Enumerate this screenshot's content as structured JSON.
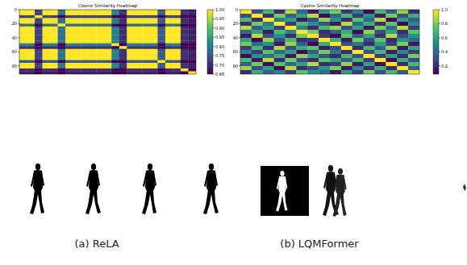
{
  "chart_data": [
    {
      "type": "heatmap",
      "title": "Cosine Similarity Heatmap",
      "caption": "(a) ReLA",
      "xlim": [
        0,
        92
      ],
      "ylim": [
        0,
        92
      ],
      "yticks": [
        0,
        20,
        40,
        60,
        80
      ],
      "tick_labels": "y",
      "cells": [
        [
          1,
          1,
          0.72,
          1,
          1,
          0.78,
          1,
          1,
          1,
          1,
          1,
          1,
          0.8,
          0.7,
          1,
          1,
          1,
          1,
          0.75,
          1,
          1,
          0.7,
          0.68
        ],
        [
          1,
          1,
          0.72,
          1,
          1,
          0.78,
          1,
          1,
          1,
          1,
          1,
          1,
          0.8,
          0.7,
          1,
          1,
          1,
          1,
          0.75,
          1,
          1,
          0.7,
          0.68
        ],
        [
          0.72,
          0.72,
          1,
          0.72,
          0.72,
          0.65,
          0.72,
          0.72,
          0.72,
          0.72,
          0.72,
          0.72,
          0.65,
          0.65,
          0.72,
          0.72,
          0.72,
          0.72,
          0.65,
          0.72,
          0.72,
          0.65,
          0.65
        ],
        [
          1,
          1,
          0.72,
          1,
          1,
          0.78,
          1,
          1,
          1,
          1,
          1,
          1,
          0.8,
          0.7,
          1,
          1,
          1,
          1,
          0.75,
          1,
          1,
          0.7,
          0.68
        ],
        [
          1,
          1,
          0.72,
          1,
          1,
          0.78,
          1,
          1,
          1,
          1,
          1,
          1,
          0.8,
          0.7,
          1,
          1,
          1,
          1,
          0.75,
          1,
          1,
          0.7,
          0.68
        ],
        [
          0.78,
          0.78,
          0.65,
          0.78,
          0.78,
          1,
          0.78,
          0.78,
          0.78,
          0.78,
          0.78,
          0.78,
          0.65,
          0.65,
          0.78,
          0.78,
          0.78,
          0.78,
          0.65,
          0.78,
          0.78,
          0.65,
          0.65
        ],
        [
          1,
          1,
          0.72,
          1,
          1,
          0.78,
          1,
          1,
          1,
          1,
          1,
          1,
          0.8,
          0.7,
          1,
          1,
          1,
          1,
          0.75,
          1,
          1,
          0.7,
          0.68
        ],
        [
          1,
          1,
          0.72,
          1,
          1,
          0.78,
          1,
          1,
          1,
          1,
          1,
          1,
          0.8,
          0.7,
          1,
          1,
          1,
          1,
          0.75,
          1,
          1,
          0.7,
          0.68
        ],
        [
          1,
          1,
          0.72,
          1,
          1,
          0.78,
          1,
          1,
          1,
          1,
          1,
          1,
          0.8,
          0.7,
          1,
          1,
          1,
          1,
          0.75,
          1,
          1,
          0.7,
          0.68
        ],
        [
          1,
          1,
          0.72,
          1,
          1,
          0.78,
          1,
          1,
          1,
          1,
          1,
          1,
          0.8,
          0.7,
          1,
          1,
          1,
          1,
          0.75,
          1,
          1,
          0.7,
          0.68
        ],
        [
          1,
          1,
          0.72,
          1,
          1,
          0.78,
          1,
          1,
          1,
          1,
          1,
          1,
          0.8,
          0.7,
          1,
          1,
          1,
          1,
          0.75,
          1,
          1,
          0.7,
          0.68
        ],
        [
          1,
          1,
          0.72,
          1,
          1,
          0.78,
          1,
          1,
          1,
          1,
          1,
          1,
          0.8,
          0.7,
          1,
          1,
          1,
          1,
          0.75,
          1,
          1,
          0.7,
          0.68
        ],
        [
          0.8,
          0.8,
          0.65,
          0.8,
          0.8,
          0.65,
          0.8,
          0.8,
          0.8,
          0.8,
          0.8,
          0.8,
          1,
          0.65,
          0.8,
          0.8,
          0.8,
          0.8,
          0.65,
          0.8,
          0.8,
          0.65,
          0.65
        ],
        [
          0.7,
          0.7,
          0.65,
          0.7,
          0.7,
          0.65,
          0.7,
          0.7,
          0.7,
          0.7,
          0.7,
          0.7,
          0.65,
          1,
          0.7,
          0.7,
          0.7,
          0.7,
          0.65,
          0.7,
          0.7,
          0.65,
          0.65
        ],
        [
          1,
          1,
          0.72,
          1,
          1,
          0.78,
          1,
          1,
          1,
          1,
          1,
          1,
          0.8,
          0.7,
          1,
          1,
          1,
          1,
          0.75,
          1,
          1,
          0.7,
          0.68
        ],
        [
          1,
          1,
          0.72,
          1,
          1,
          0.78,
          1,
          1,
          1,
          1,
          1,
          1,
          0.8,
          0.7,
          1,
          1,
          1,
          1,
          0.75,
          1,
          1,
          0.7,
          0.68
        ],
        [
          1,
          1,
          0.72,
          1,
          1,
          0.78,
          1,
          1,
          1,
          1,
          1,
          1,
          0.8,
          0.7,
          1,
          1,
          1,
          1,
          0.75,
          1,
          1,
          0.7,
          0.68
        ],
        [
          1,
          1,
          0.72,
          1,
          1,
          0.78,
          1,
          1,
          1,
          1,
          1,
          1,
          0.8,
          0.7,
          1,
          1,
          1,
          1,
          0.75,
          1,
          1,
          0.7,
          0.68
        ],
        [
          0.75,
          0.75,
          0.65,
          0.75,
          0.75,
          0.65,
          0.75,
          0.75,
          0.75,
          0.75,
          0.75,
          0.75,
          0.65,
          0.65,
          0.75,
          0.75,
          0.75,
          0.75,
          1,
          0.75,
          0.75,
          0.65,
          0.65
        ],
        [
          1,
          1,
          0.72,
          1,
          1,
          0.78,
          1,
          1,
          1,
          1,
          1,
          1,
          0.8,
          0.7,
          1,
          1,
          1,
          1,
          0.75,
          1,
          1,
          0.7,
          0.68
        ],
        [
          1,
          1,
          0.72,
          1,
          1,
          0.78,
          1,
          1,
          1,
          1,
          1,
          1,
          0.8,
          0.7,
          1,
          1,
          1,
          1,
          0.75,
          1,
          1,
          0.7,
          0.68
        ],
        [
          0.7,
          0.7,
          0.65,
          0.7,
          0.7,
          0.65,
          0.7,
          0.7,
          0.7,
          0.7,
          0.7,
          0.7,
          0.65,
          0.65,
          0.7,
          0.7,
          0.7,
          0.7,
          0.65,
          0.7,
          0.7,
          1,
          0.65
        ],
        [
          0.68,
          0.68,
          0.65,
          0.68,
          0.68,
          0.65,
          0.68,
          0.68,
          0.68,
          0.68,
          0.68,
          0.68,
          0.65,
          0.65,
          0.68,
          0.68,
          0.68,
          0.68,
          0.65,
          0.68,
          0.68,
          0.65,
          1
        ]
      ],
      "colorbar": {
        "range": [
          0.65,
          1
        ],
        "ticks": [
          0.65,
          {
            "value": 0.7,
            "label": "0.70"
          },
          0.75,
          {
            "value": 0.8,
            "label": "0.80"
          },
          0.85,
          {
            "value": 0.9,
            "label": "0.90"
          },
          0.95,
          {
            "value": 1,
            "label": "1.00"
          }
        ]
      }
    },
    {
      "type": "heatmap",
      "title": "Cosine Similarity Heatmap",
      "caption": "(b) LQMFormer",
      "xlim": [
        0,
        92
      ],
      "ylim": [
        0,
        92
      ],
      "yticks": [
        0,
        20,
        40,
        60,
        80
      ],
      "tick_labels": "y",
      "cells": [
        [
          1,
          0.3,
          0.7,
          0.2,
          0.9,
          0.4,
          0.15,
          0.6,
          0.8,
          0.25,
          0.5,
          0.1,
          0.7,
          0.35,
          0.85,
          0.2
        ],
        [
          0.3,
          1,
          0.2,
          0.8,
          0.35,
          0.6,
          0.9,
          0.1,
          0.4,
          0.7,
          0.25,
          0.55,
          0.15,
          0.8,
          0.3,
          0.65
        ],
        [
          0.7,
          0.2,
          1,
          0.45,
          0.6,
          0.15,
          0.3,
          0.85,
          0.55,
          0.2,
          0.75,
          0.4,
          0.9,
          0.1,
          0.6,
          0.35
        ],
        [
          0.2,
          0.8,
          0.45,
          1,
          0.25,
          0.7,
          0.55,
          0.3,
          0.15,
          0.9,
          0.4,
          0.65,
          0.2,
          0.75,
          0.1,
          0.5
        ],
        [
          0.9,
          0.35,
          0.6,
          0.25,
          1,
          0.5,
          0.2,
          0.7,
          0.85,
          0.3,
          0.6,
          0.15,
          0.8,
          0.4,
          0.9,
          0.25
        ],
        [
          0.4,
          0.6,
          0.15,
          0.7,
          0.5,
          1,
          0.8,
          0.2,
          0.35,
          0.65,
          0.1,
          0.85,
          0.3,
          0.6,
          0.2,
          0.75
        ],
        [
          0.15,
          0.9,
          0.3,
          0.55,
          0.2,
          0.8,
          1,
          0.25,
          0.1,
          0.75,
          0.35,
          0.6,
          0.2,
          0.9,
          0.3,
          0.55
        ],
        [
          0.6,
          0.1,
          0.85,
          0.3,
          0.7,
          0.2,
          0.25,
          1,
          0.65,
          0.15,
          0.8,
          0.3,
          0.75,
          0.2,
          0.55,
          0.4
        ],
        [
          0.8,
          0.4,
          0.55,
          0.15,
          0.85,
          0.35,
          0.1,
          0.65,
          1,
          0.3,
          0.45,
          0.2,
          0.6,
          0.25,
          0.8,
          0.15
        ],
        [
          0.25,
          0.7,
          0.2,
          0.9,
          0.3,
          0.65,
          0.75,
          0.15,
          0.3,
          1,
          0.2,
          0.7,
          0.35,
          0.85,
          0.15,
          0.6
        ],
        [
          0.5,
          0.25,
          0.75,
          0.4,
          0.6,
          0.1,
          0.35,
          0.8,
          0.45,
          0.2,
          1,
          0.3,
          0.7,
          0.15,
          0.5,
          0.25
        ],
        [
          0.1,
          0.55,
          0.4,
          0.65,
          0.15,
          0.85,
          0.6,
          0.3,
          0.2,
          0.7,
          0.3,
          1,
          0.25,
          0.6,
          0.2,
          0.8
        ],
        [
          0.7,
          0.15,
          0.9,
          0.2,
          0.8,
          0.3,
          0.2,
          0.75,
          0.6,
          0.35,
          0.7,
          0.25,
          1,
          0.1,
          0.65,
          0.3
        ],
        [
          0.35,
          0.8,
          0.1,
          0.75,
          0.4,
          0.6,
          0.9,
          0.2,
          0.25,
          0.85,
          0.15,
          0.6,
          0.1,
          1,
          0.2,
          0.7
        ],
        [
          0.85,
          0.3,
          0.6,
          0.1,
          0.9,
          0.2,
          0.3,
          0.55,
          0.8,
          0.15,
          0.5,
          0.2,
          0.65,
          0.2,
          1,
          0.35
        ],
        [
          0.2,
          0.65,
          0.35,
          0.5,
          0.25,
          0.75,
          0.55,
          0.4,
          0.15,
          0.6,
          0.25,
          0.8,
          0.3,
          0.7,
          0.35,
          1
        ]
      ],
      "colorbar": {
        "range": [
          0.08,
          1
        ],
        "ticks": [
          0.2,
          0.4,
          0.6,
          0.8,
          {
            "value": 1,
            "label": "1.0"
          }
        ]
      }
    }
  ]
}
